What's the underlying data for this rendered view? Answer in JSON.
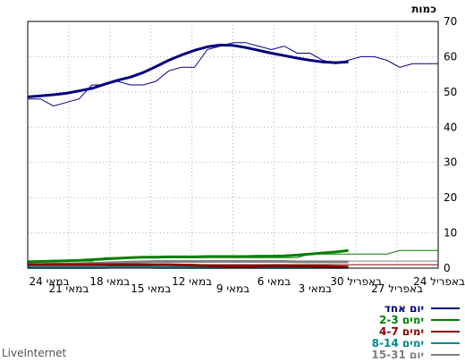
{
  "chart_data": {
    "type": "line",
    "y_axis_label": "כמות",
    "ylim": [
      0,
      70
    ],
    "y_ticks": [
      0,
      10,
      20,
      30,
      40,
      50,
      60,
      70
    ],
    "x_tick_labels": [
      "24 באפריל",
      "27 באפריל",
      "30 באפריל",
      "3 במאי",
      "6 במאי",
      "9 במאי",
      "12 במאי",
      "15 במאי",
      "18 במאי",
      "21 במאי",
      "24 במאי"
    ],
    "grid": true,
    "legend_position": "bottom-right",
    "series": [
      {
        "name": "יום אחד",
        "color": "#000080",
        "raw": [
          58,
          58,
          58,
          57,
          59,
          60,
          60,
          59,
          58,
          59,
          61,
          61,
          63,
          62,
          63,
          64,
          64,
          63,
          62,
          57,
          57,
          56,
          53,
          52,
          52,
          53,
          52,
          52,
          48,
          47,
          46,
          48,
          48
        ],
        "smooth": [
          null,
          null,
          null,
          null,
          null,
          null,
          null,
          58.5,
          58.3,
          58.5,
          59,
          59.6,
          60.3,
          61,
          61.8,
          62.6,
          63.2,
          63.3,
          62.8,
          61.8,
          60.5,
          59,
          57.2,
          55.5,
          54.2,
          53.3,
          52.2,
          51,
          50.3,
          49.6,
          49.2,
          48.9,
          48.6
        ]
      },
      {
        "name": "2-3 ימים",
        "color": "#008000",
        "raw": [
          5,
          5,
          5,
          5,
          4,
          4,
          4,
          4,
          4,
          4,
          4,
          3,
          3,
          3,
          3,
          3,
          3,
          3,
          3,
          3,
          3,
          3,
          3,
          3,
          3,
          3,
          3,
          2,
          2,
          2,
          2,
          2,
          2
        ],
        "smooth": [
          null,
          null,
          null,
          null,
          null,
          null,
          null,
          5,
          4.6,
          4.3,
          4,
          3.7,
          3.5,
          3.4,
          3.4,
          3.3,
          3.3,
          3.3,
          3.3,
          3.2,
          3.2,
          3.2,
          3.1,
          3.1,
          3,
          2.8,
          2.6,
          2.4,
          2.2,
          2.1,
          2,
          1.9,
          1.8
        ]
      },
      {
        "name": "4-7 ימים",
        "color": "#8b0000",
        "raw": [
          1,
          1,
          1,
          1,
          1,
          1,
          1,
          1,
          1,
          1,
          1,
          1,
          1,
          1,
          1,
          1,
          1,
          1,
          1,
          1,
          1,
          1,
          1,
          1,
          1,
          1,
          1,
          1,
          1,
          1,
          1,
          1,
          1
        ],
        "smooth": [
          null,
          null,
          null,
          null,
          null,
          null,
          null,
          0.3,
          0.4,
          0.5,
          0.6,
          0.6,
          0.7,
          0.7,
          0.6,
          0.5,
          0.5,
          0.6,
          0.7,
          0.8,
          0.9,
          1,
          1,
          1,
          1,
          1,
          1,
          1,
          1,
          1,
          1,
          1,
          1
        ]
      },
      {
        "name": "8-14 ימים",
        "color": "#008b8b",
        "raw": [
          0,
          0,
          0,
          0,
          0,
          0,
          0,
          0,
          0,
          0,
          0,
          0,
          0,
          0,
          0,
          0,
          0,
          0,
          0,
          0,
          0,
          0,
          0,
          0,
          1,
          0,
          0,
          0,
          0,
          0,
          0,
          0,
          0
        ],
        "smooth": [
          null,
          null,
          null,
          null,
          null,
          null,
          null,
          0.2,
          0.2,
          0.2,
          0.2,
          0.2,
          0.2,
          0.2,
          0.2,
          0.2,
          0.2,
          0.2,
          0.2,
          0.2,
          0.2,
          0.2,
          0.2,
          0.3,
          0.3,
          0.3,
          0.2,
          0.2,
          0.2,
          0.2,
          0.2,
          0.2,
          0.2
        ]
      },
      {
        "name": "15-31 יום",
        "color": "#808080",
        "raw": [
          2,
          2,
          2,
          2,
          2,
          2,
          2,
          2,
          2,
          2,
          2,
          2,
          2,
          2,
          2,
          2,
          2,
          2,
          2,
          2,
          2,
          2,
          2,
          2,
          2,
          1,
          1,
          1,
          1,
          1,
          1,
          1,
          1
        ],
        "smooth": [
          null,
          null,
          null,
          null,
          null,
          null,
          null,
          1.8,
          1.8,
          1.8,
          1.8,
          1.8,
          1.9,
          1.9,
          1.9,
          1.9,
          1.9,
          1.9,
          1.9,
          1.9,
          1.9,
          1.9,
          1.9,
          1.8,
          1.7,
          1.6,
          1.5,
          1.4,
          1.3,
          1.2,
          1.2,
          1.1,
          1.1
        ]
      }
    ]
  },
  "branding": {
    "text": "LiveInternet"
  }
}
